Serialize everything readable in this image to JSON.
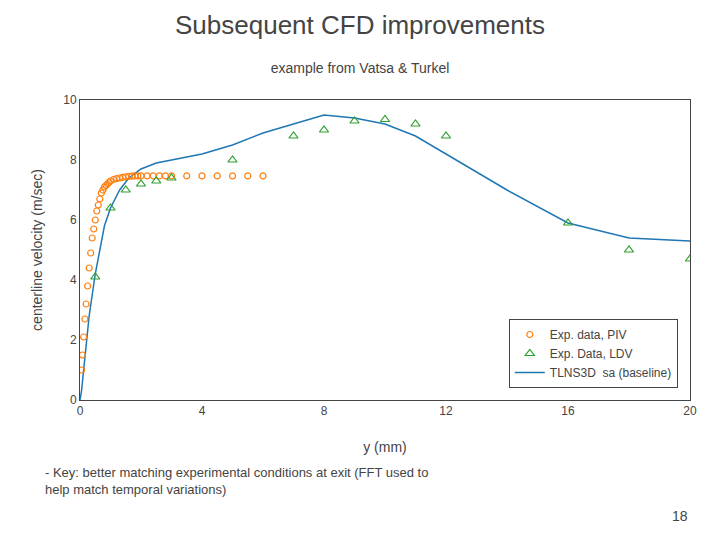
{
  "chart_data": {
    "type": "line",
    "title": "Subsequent CFD improvements",
    "subtitle": "example from Vatsa & Turkel",
    "xlabel": "y (mm)",
    "ylabel": "centerline velocity (m/sec)",
    "annotations": [
      "- Key: better matching experimental conditions at exit (FFT used to\nhelp match temporal variations)",
      "18"
    ],
    "xlim": [
      0,
      20
    ],
    "ylim": [
      0,
      10
    ],
    "xticks": [
      0,
      4,
      8,
      12,
      16,
      20
    ],
    "yticks": [
      0,
      2,
      4,
      6,
      8,
      10
    ],
    "grid": false,
    "legend": "lower right",
    "series": [
      {
        "name": "Exp. data, PIV",
        "type": "scatter",
        "marker": "circle",
        "x": [
          0.05,
          0.08,
          0.12,
          0.16,
          0.2,
          0.25,
          0.3,
          0.35,
          0.4,
          0.45,
          0.5,
          0.55,
          0.6,
          0.65,
          0.7,
          0.75,
          0.8,
          0.85,
          0.9,
          0.95,
          1.0,
          1.1,
          1.2,
          1.3,
          1.4,
          1.5,
          1.6,
          1.7,
          1.8,
          1.9,
          2.0,
          2.2,
          2.4,
          2.6,
          2.8,
          3.0,
          3.5,
          4.0,
          4.5,
          5.0,
          5.5,
          6.0
        ],
        "values": [
          1.0,
          1.5,
          2.1,
          2.7,
          3.2,
          3.8,
          4.4,
          4.9,
          5.4,
          5.7,
          6.0,
          6.3,
          6.5,
          6.7,
          6.9,
          7.0,
          7.1,
          7.15,
          7.2,
          7.25,
          7.3,
          7.35,
          7.38,
          7.4,
          7.42,
          7.44,
          7.45,
          7.46,
          7.47,
          7.47,
          7.47,
          7.47,
          7.47,
          7.47,
          7.47,
          7.47,
          7.47,
          7.47,
          7.47,
          7.47,
          7.47,
          7.47
        ]
      },
      {
        "name": "Exp. Data, LDV",
        "type": "scatter",
        "marker": "triangle",
        "x": [
          0.5,
          1.0,
          1.5,
          2.0,
          2.5,
          3.0,
          5.0,
          7.0,
          8.0,
          9.0,
          10.0,
          11.0,
          12.0,
          16.0,
          18.0,
          20.0
        ],
        "values": [
          4.1,
          6.4,
          7.0,
          7.2,
          7.3,
          7.4,
          8.0,
          8.8,
          9.0,
          9.3,
          9.35,
          9.2,
          8.8,
          5.9,
          5.0,
          4.7
        ]
      },
      {
        "name": "TLNS3D  sa (baseline)",
        "type": "line",
        "line_style": "solid",
        "x": [
          0,
          0.05,
          0.1,
          0.2,
          0.3,
          0.5,
          0.8,
          1.0,
          1.3,
          1.6,
          2.0,
          2.5,
          3.0,
          3.5,
          4.0,
          5.0,
          6.0,
          7.0,
          8.0,
          9.0,
          10.0,
          11.0,
          12.0,
          14.0,
          16.0,
          18.0,
          20.0
        ],
        "values": [
          0,
          0.3,
          0.8,
          1.8,
          2.8,
          4.2,
          5.8,
          6.4,
          7.0,
          7.4,
          7.7,
          7.9,
          8.0,
          8.1,
          8.2,
          8.5,
          8.9,
          9.2,
          9.5,
          9.4,
          9.2,
          8.8,
          8.2,
          7.0,
          5.9,
          5.4,
          5.3
        ]
      }
    ]
  }
}
